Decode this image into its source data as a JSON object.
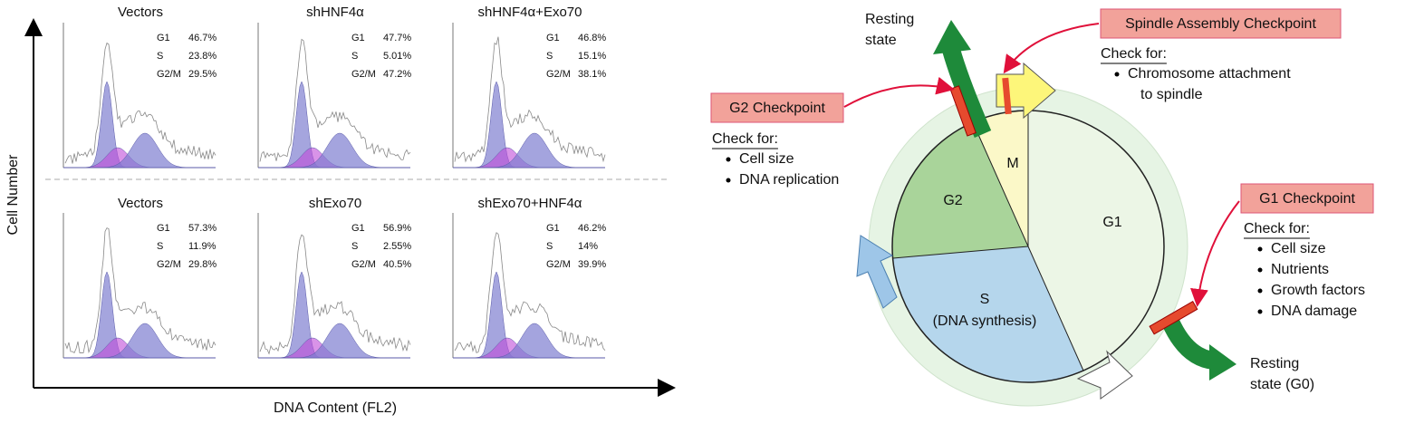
{
  "figure_a": {
    "y_axis_label": "Cell  Number",
    "x_axis_label": "DNA  Content (FL2)",
    "panels": [
      {
        "title": "Vectors",
        "stats": [
          [
            "G1",
            "46.7%"
          ],
          [
            "S",
            "23.8%"
          ],
          [
            "G2/M",
            "29.5%"
          ]
        ]
      },
      {
        "title": "shHNF4α",
        "stats": [
          [
            "G1",
            "47.7%"
          ],
          [
            "S",
            "5.01%"
          ],
          [
            "G2/M",
            "47.2%"
          ]
        ]
      },
      {
        "title": "shHNF4α+Exo70",
        "stats": [
          [
            "G1",
            "46.8%"
          ],
          [
            "S",
            "15.1%"
          ],
          [
            "G2/M",
            "38.1%"
          ]
        ]
      },
      {
        "title": "Vectors",
        "stats": [
          [
            "G1",
            "57.3%"
          ],
          [
            "S",
            "11.9%"
          ],
          [
            "G2/M",
            "29.8%"
          ]
        ]
      },
      {
        "title": "shExo70",
        "stats": [
          [
            "G1",
            "56.9%"
          ],
          [
            "S",
            "2.55%"
          ],
          [
            "G2/M",
            "40.5%"
          ]
        ]
      },
      {
        "title": "shExo70+HNF4α",
        "stats": [
          [
            "G1",
            "46.2%"
          ],
          [
            "S",
            "14%"
          ],
          [
            "G2/M",
            "39.9%"
          ]
        ]
      }
    ]
  },
  "figure_b": {
    "phases": {
      "m": "M",
      "g2": "G2",
      "g1": "G1",
      "s": "S",
      "s_detail": "(DNA synthesis)"
    },
    "resting_top": [
      "Resting",
      "state"
    ],
    "resting_bottom": [
      "Resting",
      "state (G0)"
    ],
    "checkpoints": [
      {
        "name": "G2 Checkpoint",
        "check_for": "Check for:",
        "items": [
          [
            "Cell size"
          ],
          [
            "DNA replication"
          ]
        ]
      },
      {
        "name": "Spindle Assembly Checkpoint",
        "check_for": "Check for:",
        "items": [
          [
            "Chromosome attachment",
            "to spindle"
          ]
        ]
      },
      {
        "name": "G1 Checkpoint",
        "check_for": "Check for:",
        "items": [
          [
            "Cell size"
          ],
          [
            "Nutrients"
          ],
          [
            "Growth factors"
          ],
          [
            "DNA damage"
          ]
        ]
      }
    ]
  }
}
